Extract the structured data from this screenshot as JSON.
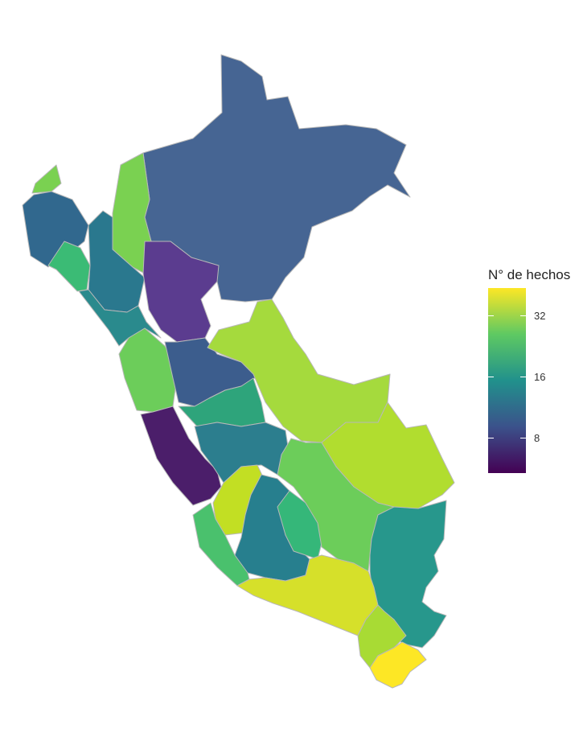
{
  "legend": {
    "title": "N° de hechos",
    "ticks": [
      "32",
      "16",
      "8"
    ]
  },
  "colors": {
    "viridis_low": "#440154",
    "viridis_high": "#fde725",
    "border": "#b8b8b8"
  }
}
